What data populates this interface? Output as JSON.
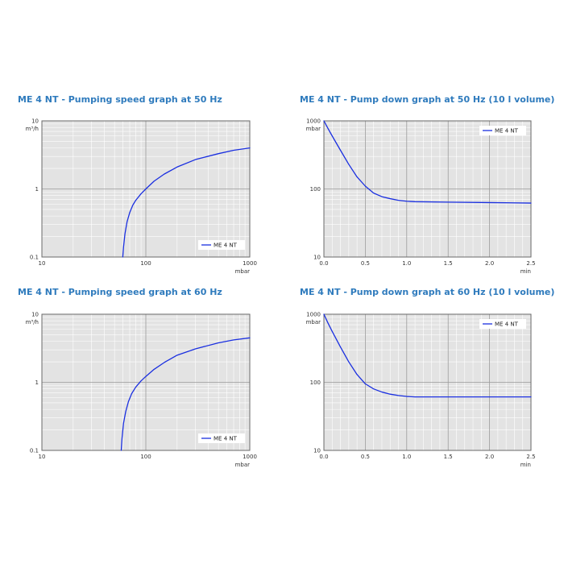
{
  "chart_data": [
    {
      "type": "line",
      "title": "ME 4 NT - Pumping speed graph at 50 Hz",
      "xscale": "log",
      "yscale": "log",
      "xlim": [
        10,
        1000
      ],
      "ylim": [
        0.1,
        10
      ],
      "xticks": [
        "10",
        "100",
        "1000"
      ],
      "yticks": [
        "0.1",
        "1",
        "10"
      ],
      "xunit": "mbar",
      "yunit": "m³/h",
      "grid": true,
      "legend_position": "bottom-right",
      "series": [
        {
          "name": "ME 4 NT",
          "color": "#1a2fe0",
          "x": [
            60,
            61,
            63,
            66,
            70,
            75,
            80,
            90,
            100,
            120,
            150,
            200,
            300,
            500,
            700,
            1000
          ],
          "y": [
            0.1,
            0.14,
            0.22,
            0.33,
            0.45,
            0.58,
            0.68,
            0.85,
            1.0,
            1.3,
            1.65,
            2.1,
            2.7,
            3.3,
            3.7,
            4.0
          ]
        }
      ]
    },
    {
      "type": "line",
      "title": "ME 4 NT - Pump down graph at 50 Hz (10 l volume)",
      "xscale": "linear",
      "yscale": "log",
      "xlim": [
        0,
        2.5
      ],
      "ylim": [
        10,
        1000
      ],
      "xticks": [
        "0.0",
        "0.5",
        "1.0",
        "1.5",
        "2.0",
        "2.5"
      ],
      "yticks": [
        "10",
        "100",
        "1000"
      ],
      "xunit": "min",
      "yunit": "mbar",
      "grid": true,
      "legend_position": "top-right",
      "series": [
        {
          "name": "ME 4 NT",
          "color": "#1a2fe0",
          "x": [
            0,
            0.05,
            0.1,
            0.2,
            0.3,
            0.4,
            0.5,
            0.6,
            0.7,
            0.8,
            0.9,
            1.0,
            1.1,
            1.5,
            2.0,
            2.5
          ],
          "y": [
            1000,
            770,
            600,
            370,
            230,
            150,
            110,
            87,
            77,
            72,
            68,
            66,
            65,
            64,
            63,
            62
          ]
        }
      ]
    },
    {
      "type": "line",
      "title": "ME 4 NT - Pumping speed graph at 60 Hz",
      "xscale": "log",
      "yscale": "log",
      "xlim": [
        10,
        1000
      ],
      "ylim": [
        0.1,
        10
      ],
      "xticks": [
        "10",
        "100",
        "1000"
      ],
      "yticks": [
        "0.1",
        "1",
        "10"
      ],
      "xunit": "mbar",
      "yunit": "m³/h",
      "grid": true,
      "legend_position": "bottom-right",
      "series": [
        {
          "name": "ME 4 NT",
          "color": "#1a2fe0",
          "x": [
            58,
            59,
            61,
            64,
            68,
            73,
            80,
            90,
            100,
            120,
            150,
            200,
            300,
            500,
            700,
            1000
          ],
          "y": [
            0.1,
            0.15,
            0.25,
            0.37,
            0.52,
            0.68,
            0.85,
            1.05,
            1.22,
            1.55,
            1.95,
            2.5,
            3.1,
            3.8,
            4.2,
            4.5
          ]
        }
      ]
    },
    {
      "type": "line",
      "title": "ME 4 NT - Pump down graph at 60 Hz (10 l volume)",
      "xscale": "linear",
      "yscale": "log",
      "xlim": [
        0,
        2.5
      ],
      "ylim": [
        10,
        1000
      ],
      "xticks": [
        "0.0",
        "0.5",
        "1.0",
        "1.5",
        "2.0",
        "2.5"
      ],
      "yticks": [
        "10",
        "100",
        "1000"
      ],
      "xunit": "min",
      "yunit": "mbar",
      "grid": true,
      "legend_position": "top-right",
      "series": [
        {
          "name": "ME 4 NT",
          "color": "#1a2fe0",
          "x": [
            0,
            0.05,
            0.1,
            0.2,
            0.3,
            0.4,
            0.5,
            0.6,
            0.7,
            0.8,
            0.9,
            1.0,
            1.1,
            1.5,
            2.0,
            2.5
          ],
          "y": [
            1000,
            740,
            560,
            330,
            200,
            130,
            95,
            80,
            72,
            67,
            64,
            62,
            61,
            61,
            61,
            61
          ]
        }
      ]
    }
  ]
}
